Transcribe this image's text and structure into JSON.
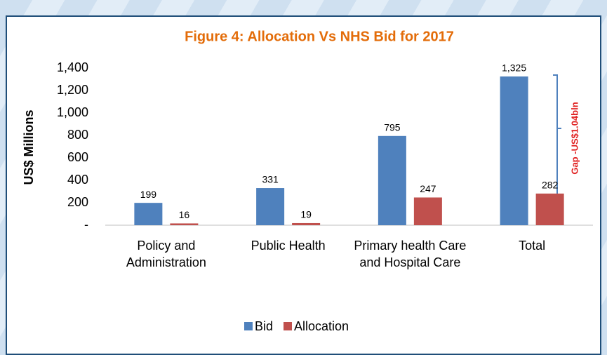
{
  "chart_data": {
    "type": "bar",
    "title": "Figure 4: Allocation Vs NHS Bid for 2017",
    "ylabel": "US$ Millions",
    "categories": [
      "Policy and Administration",
      "Public Health",
      "Primary health Care and Hospital Care",
      "Total"
    ],
    "series": [
      {
        "name": "Bid",
        "color": "#4f81bd",
        "values": [
          199,
          331,
          795,
          1325
        ],
        "value_labels": [
          "199",
          "331",
          "795",
          "1,325"
        ]
      },
      {
        "name": "Allocation",
        "color": "#c0504d",
        "values": [
          16,
          19,
          247,
          282
        ]
      }
    ],
    "ylim": [
      0,
      1400
    ],
    "yticks": [
      {
        "value": 0,
        "label": "-"
      },
      200,
      400,
      600,
      800,
      {
        "value": 1000,
        "label": "1,000"
      },
      {
        "value": 1200,
        "label": "1,200"
      },
      {
        "value": 1400,
        "label": "1,400"
      }
    ],
    "annotation": "Gap -US$1.04bln",
    "legend": "bottom"
  }
}
